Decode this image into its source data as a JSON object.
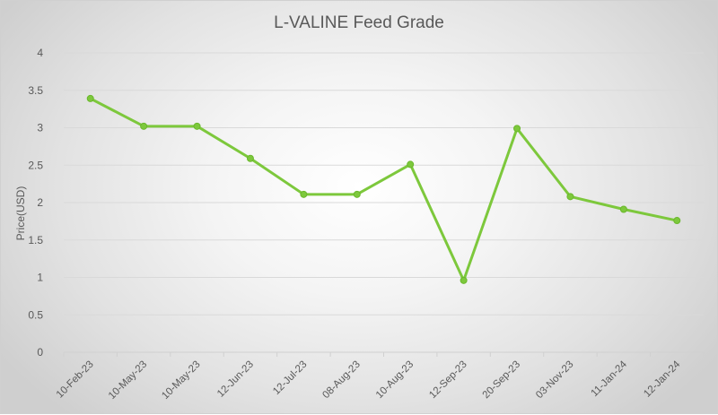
{
  "chart_data": {
    "type": "line",
    "title": "L-VALINE Feed Grade",
    "xlabel": "",
    "ylabel": "Price(USD)",
    "ylim": [
      0,
      4
    ],
    "yticks": [
      "0",
      "0.5",
      "1",
      "1.5",
      "2",
      "2.5",
      "3",
      "3.5",
      "4"
    ],
    "grid": true,
    "legend": null,
    "categories": [
      "10-Feb-23",
      "10-May-23",
      "10-May-23",
      "12-Jun-23",
      "12-Jul-23",
      "08-Aug-23",
      "10-Aug-23",
      "12-Sep-23",
      "20-Sep-23",
      "03-Nov-23",
      "11-Jan-24",
      "12-Jan-24"
    ],
    "series": [
      {
        "name": "L-VALINE Feed Grade",
        "color": "#7dc83c",
        "values": [
          3.39,
          3.02,
          3.02,
          2.59,
          2.11,
          2.11,
          2.51,
          0.96,
          2.99,
          2.08,
          1.91,
          1.76
        ]
      }
    ]
  }
}
